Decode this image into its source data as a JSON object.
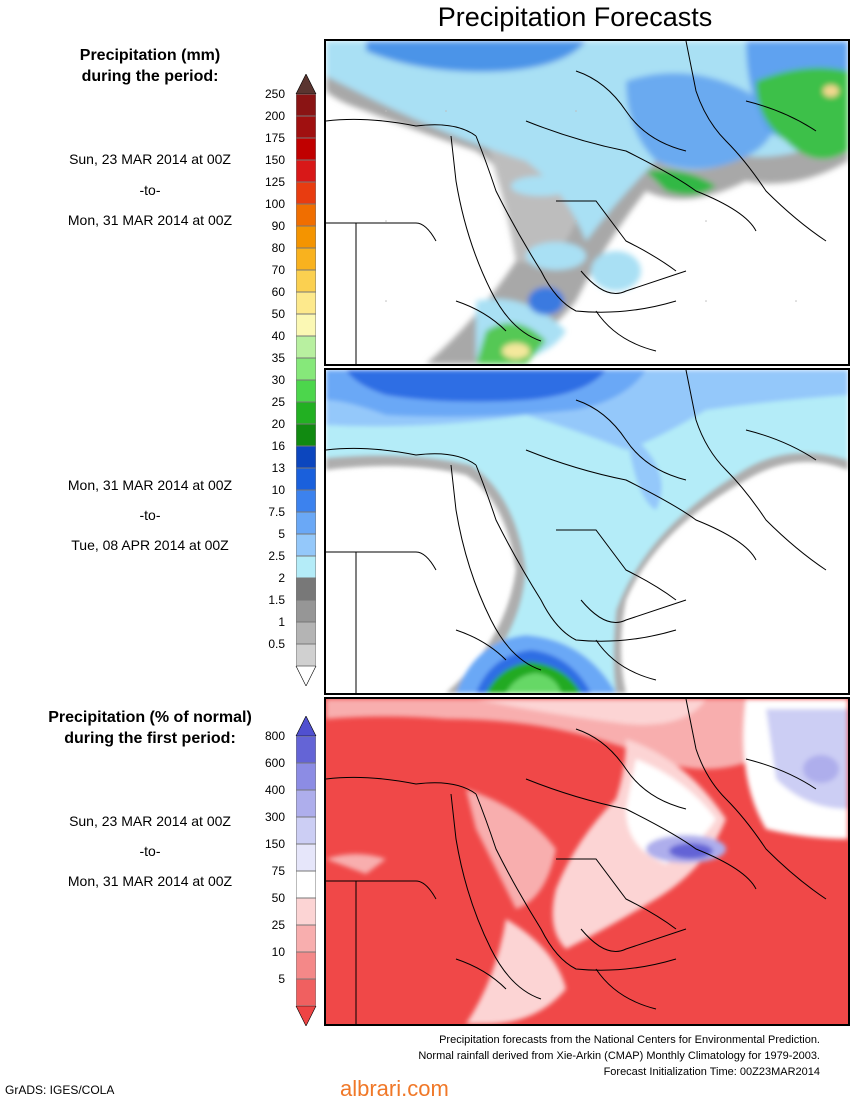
{
  "title": "Precipitation Forecasts",
  "legend_mm": {
    "heading_line1": "Precipitation (mm)",
    "heading_line2": "during the period:",
    "levels": [
      "250",
      "200",
      "175",
      "150",
      "125",
      "100",
      "90",
      "80",
      "70",
      "60",
      "50",
      "40",
      "35",
      "30",
      "25",
      "20",
      "16",
      "13",
      "10",
      "7.5",
      "5",
      "2.5",
      "2",
      "1.5",
      "1",
      "0.5"
    ],
    "colors": [
      "#8a1414",
      "#a01010",
      "#c00000",
      "#d81818",
      "#e83c10",
      "#f06e00",
      "#f49400",
      "#f9b21e",
      "#fbd050",
      "#fde98c",
      "#fbf8b4",
      "#b8f0a0",
      "#86e87a",
      "#4cd64c",
      "#22b022",
      "#118a11",
      "#0c46be",
      "#1a60dc",
      "#3c82ee",
      "#6aa8f6",
      "#94c8fa",
      "#b4ecf8",
      "#787878",
      "#969696",
      "#b4b4b4",
      "#d0d0d0"
    ],
    "top_arrow_color": "#5a3530"
  },
  "period1": {
    "start": "Sun, 23 MAR 2014 at 00Z",
    "to": "-to-",
    "end": "Mon, 31 MAR 2014 at 00Z"
  },
  "period2": {
    "start": "Mon, 31 MAR 2014 at 00Z",
    "to": "-to-",
    "end": "Tue, 08 APR 2014 at 00Z"
  },
  "legend_pct": {
    "heading_line1": "Precipitation (% of normal)",
    "heading_line2": "during the first period:",
    "levels": [
      "800",
      "600",
      "400",
      "300",
      "150",
      "75",
      "50",
      "25",
      "10",
      "5"
    ],
    "colors": [
      "#6464d6",
      "#8c8ce4",
      "#aeaeec",
      "#cccef4",
      "#e6e6fa",
      "#ffffff",
      "#fcd4d4",
      "#f8aeae",
      "#f48888",
      "#f06060"
    ],
    "top_arrow_color": "#5050d0",
    "bottom_arrow_color": "#ee4444"
  },
  "period3": {
    "start": "Sun, 23 MAR 2014 at 00Z",
    "to": "-to-",
    "end": "Mon, 31 MAR 2014 at 00Z"
  },
  "footer": {
    "line1": "Precipitation forecasts from the National Centers for Environmental Prediction.",
    "line2": "Normal rainfall derived from Xie-Arkin (CMAP) Monthly Climatology for 1979-2003.",
    "line3": "Forecast Initialization Time: 00Z23MAR2014"
  },
  "software_credit": "GrADS: IGES/COLA",
  "watermark": "albrari.com"
}
